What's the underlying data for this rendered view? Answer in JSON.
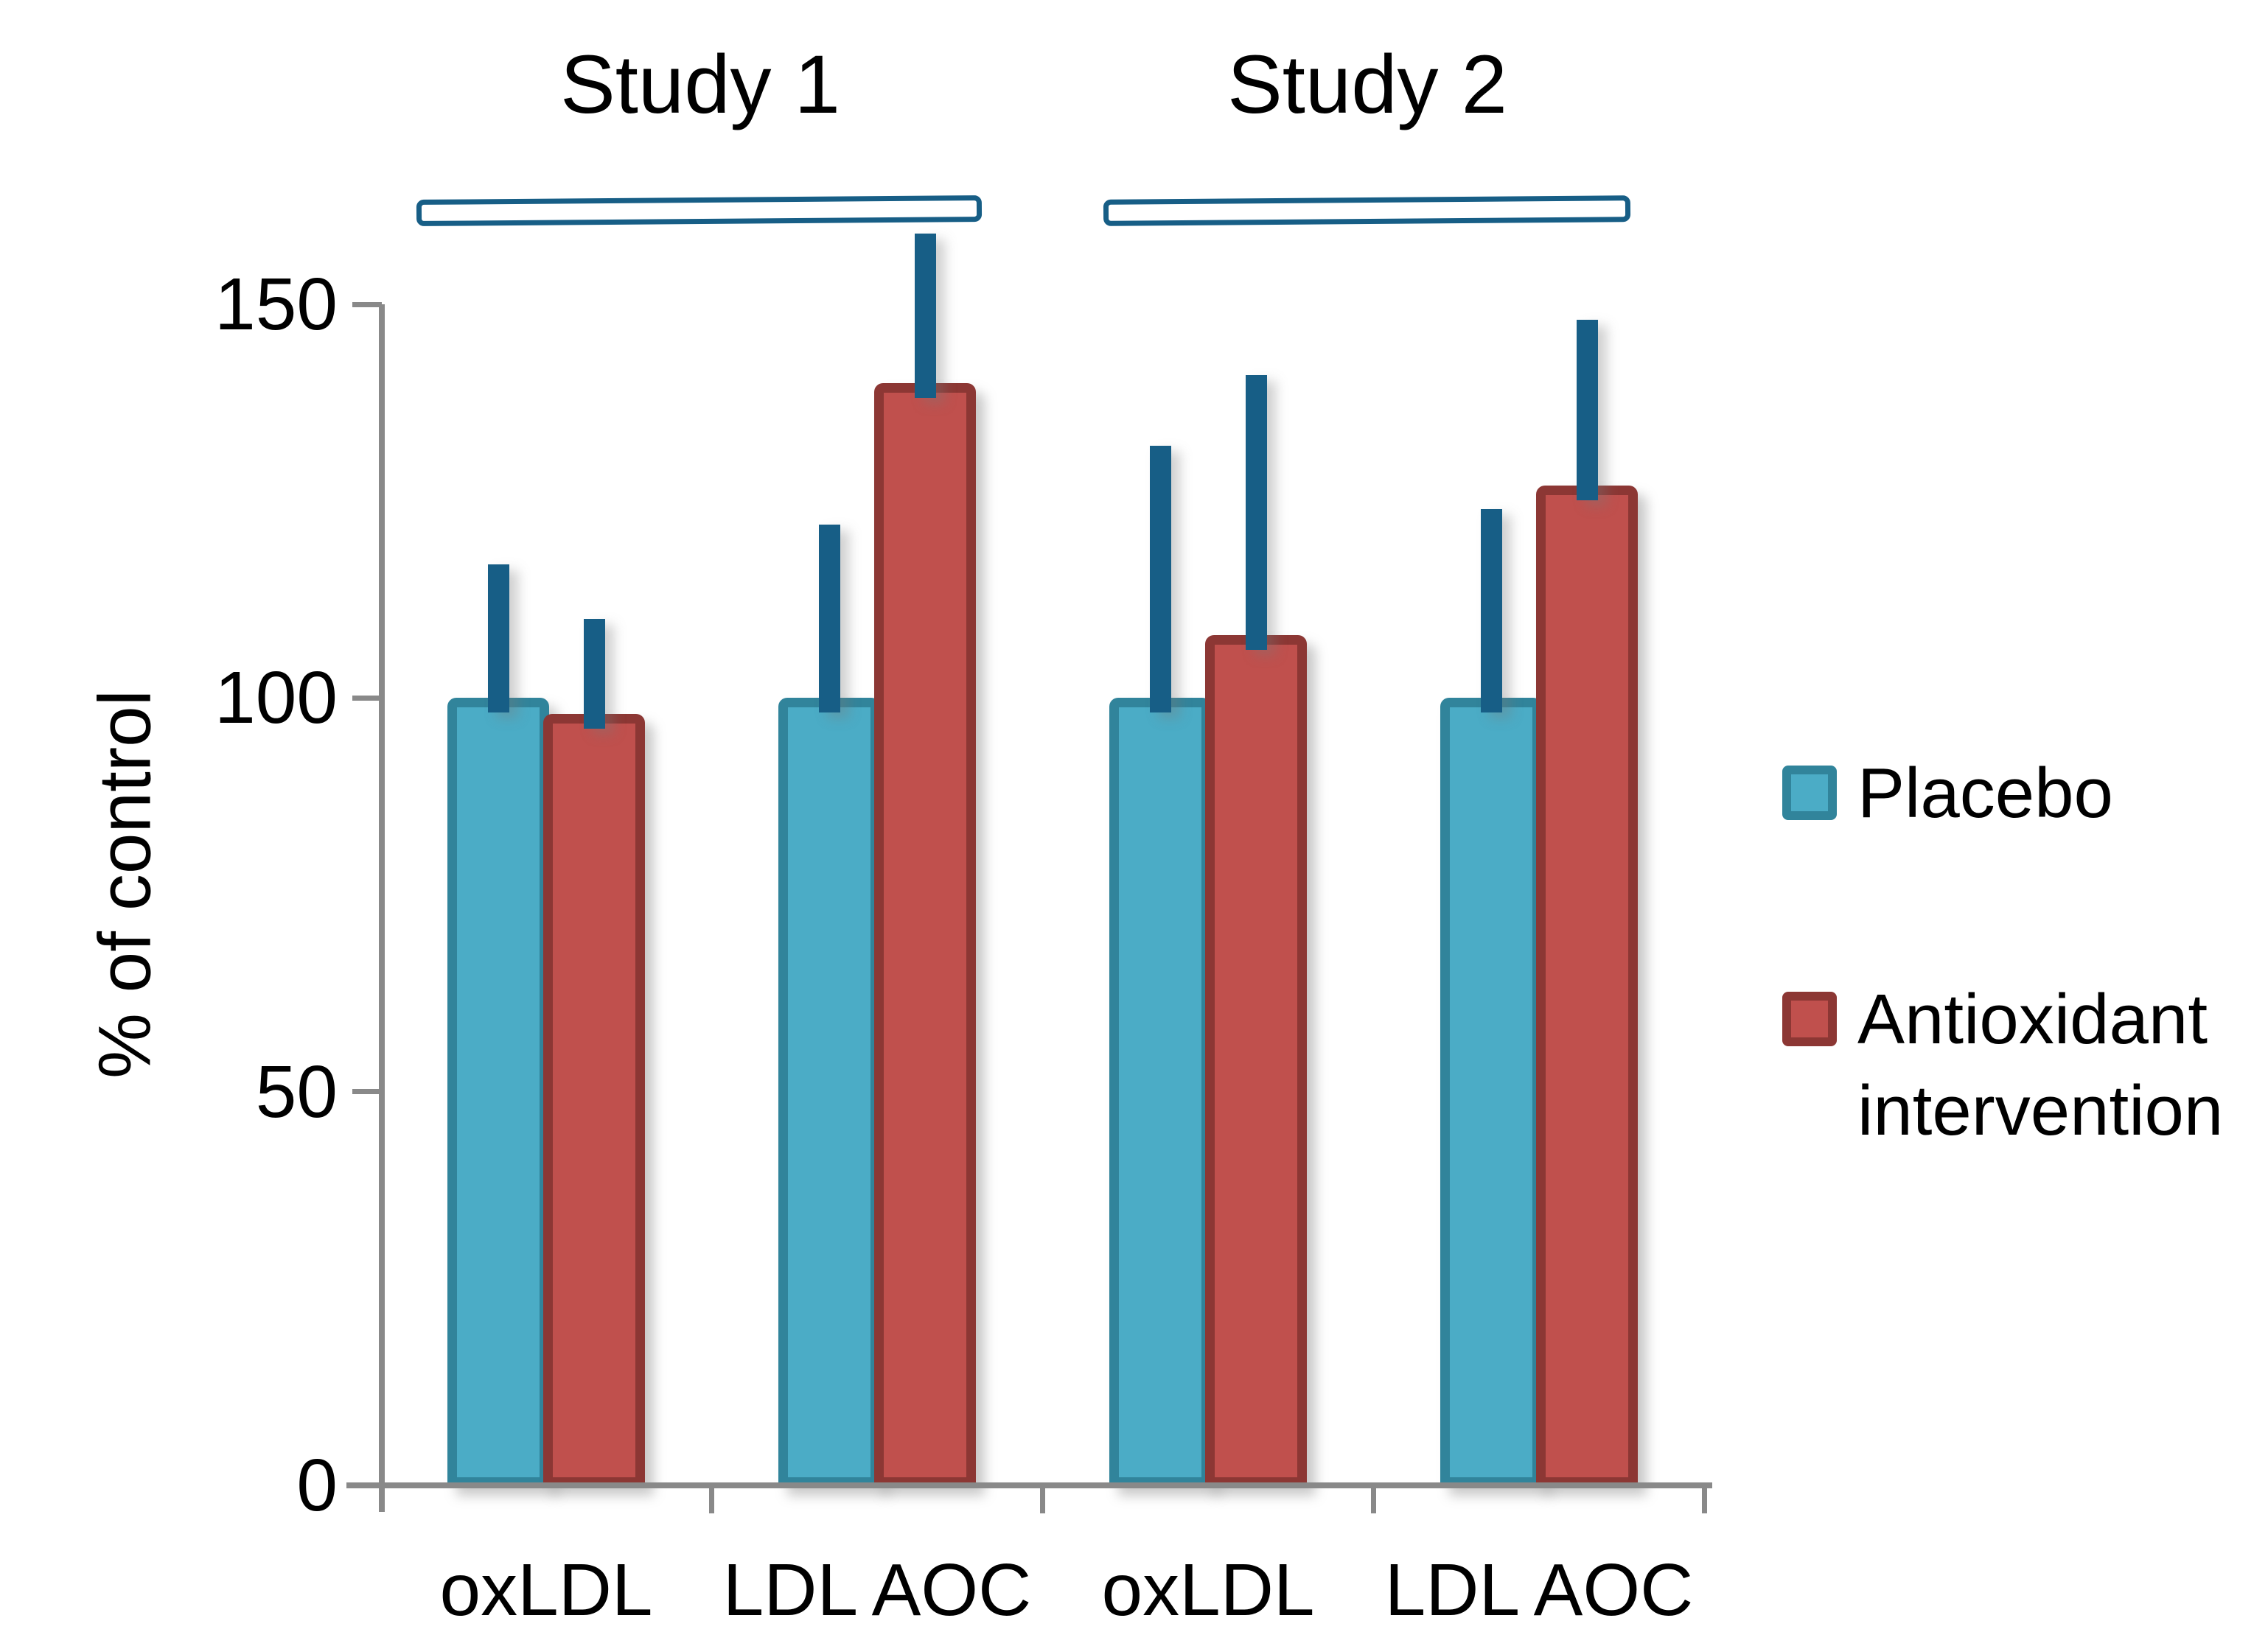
{
  "chart_data": {
    "type": "bar",
    "title": "",
    "ylabel": "% of control",
    "yticks": [
      0,
      50,
      100,
      150
    ],
    "ylim": [
      0,
      150
    ],
    "categories": [
      "oxLDL",
      "LDL AOC",
      "oxLDL",
      "LDL AOC"
    ],
    "series": [
      {
        "name": "Placebo",
        "values": [
          100,
          100,
          100,
          100
        ],
        "error_tops": [
          117,
          122,
          132,
          124
        ],
        "fill": "#4BACC6",
        "border": "#31849B"
      },
      {
        "name": "Antioxidant intervention",
        "values": [
          98,
          140,
          108,
          127
        ],
        "error_tops": [
          110,
          159,
          141,
          148
        ],
        "fill": "#C0504D",
        "border": "#8C3734"
      }
    ],
    "studies": [
      {
        "label": "Study 1",
        "categories": [
          0,
          1
        ]
      },
      {
        "label": "Study 2",
        "categories": [
          2,
          3
        ]
      }
    ],
    "colors": {
      "error_bar": "#175E86",
      "bracket": "#175E86",
      "axis": "#898989",
      "text": "#000000"
    },
    "legend_position": "right",
    "grid": "off",
    "error_bars": "plus-direction-only"
  }
}
